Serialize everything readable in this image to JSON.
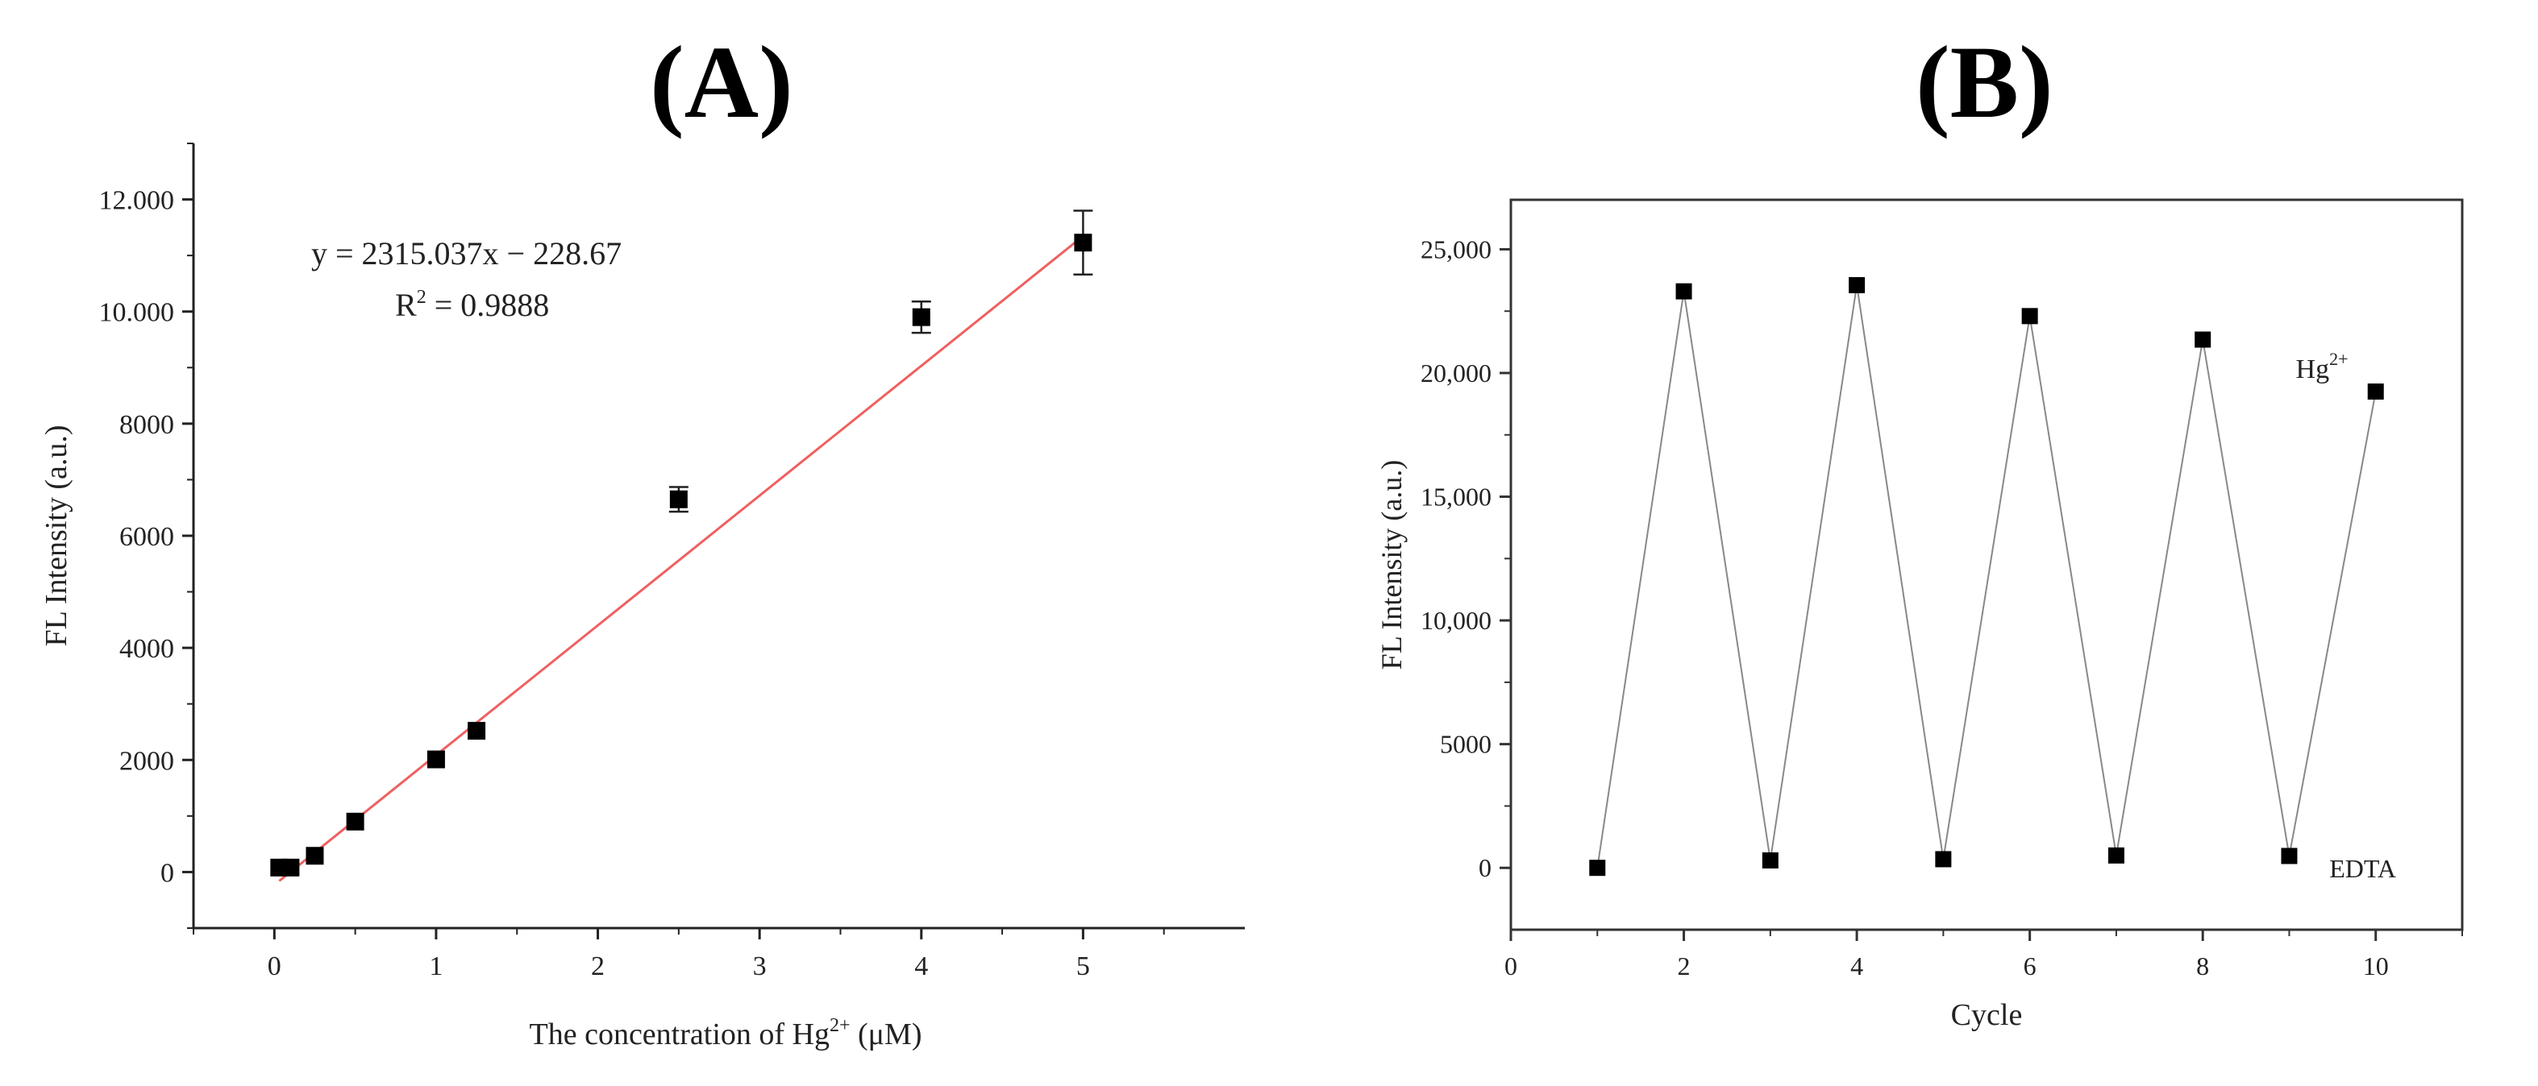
{
  "panels": {
    "a": {
      "label": "(A)"
    },
    "b": {
      "label": "(B)"
    }
  },
  "chart_data": [
    {
      "type": "scatter",
      "panel": "(A)",
      "xlabel": "The concentration of Hg2+ (μM)",
      "ylabel": "FL Intensity (a.u.)",
      "xlim": [
        -0.5,
        6
      ],
      "ylim": [
        -1000,
        13000
      ],
      "xticks": [
        0,
        1,
        2,
        3,
        4,
        5
      ],
      "yticks": [
        0,
        2000,
        4000,
        6000,
        8000,
        10000,
        12000
      ],
      "ytick_labels": [
        "0",
        "2000",
        "4000",
        "6000",
        "8000",
        "10.000",
        "12.000"
      ],
      "points": [
        {
          "x": 0.03,
          "y": 80
        },
        {
          "x": 0.1,
          "y": 80
        },
        {
          "x": 0.25,
          "y": 290
        },
        {
          "x": 0.5,
          "y": 900
        },
        {
          "x": 1.0,
          "y": 2010
        },
        {
          "x": 1.25,
          "y": 2520
        },
        {
          "x": 2.5,
          "y": 6650,
          "err": 220
        },
        {
          "x": 4.0,
          "y": 9900,
          "err": 280
        },
        {
          "x": 5.0,
          "y": 11230,
          "err": 570
        }
      ],
      "fit": {
        "slope": 2315.037,
        "intercept": -228.67,
        "x_range": [
          0.03,
          5.0
        ],
        "color": "#f06060"
      },
      "equation": "y = 2315.037x − 228.67",
      "r2_label": "R",
      "r2_value": " = 0.9888",
      "marker_color": "#000000"
    },
    {
      "type": "line",
      "panel": "(B)",
      "xlabel": "Cycle",
      "ylabel": "FL Intensity (a.u.)",
      "xlim": [
        0,
        11
      ],
      "ylim": [
        -2500,
        27000
      ],
      "xticks": [
        0,
        2,
        4,
        6,
        8,
        10
      ],
      "yticks": [
        0,
        5000,
        10000,
        15000,
        20000,
        25000
      ],
      "ytick_labels": [
        "0",
        "5000",
        "10,000",
        "15,000",
        "20,000",
        "25,000"
      ],
      "x": [
        1,
        2,
        3,
        4,
        5,
        6,
        7,
        8,
        9,
        10
      ],
      "y": [
        0,
        23300,
        300,
        23550,
        350,
        22300,
        500,
        21350,
        480,
        19250
      ],
      "annotations": [
        {
          "text": "Hg",
          "sup": "2+",
          "x": 9.7,
          "y": 19800
        },
        {
          "text": "EDTA",
          "x": 9.85,
          "y": 0
        }
      ],
      "line_color": "#888888",
      "marker_color": "#000000"
    }
  ]
}
